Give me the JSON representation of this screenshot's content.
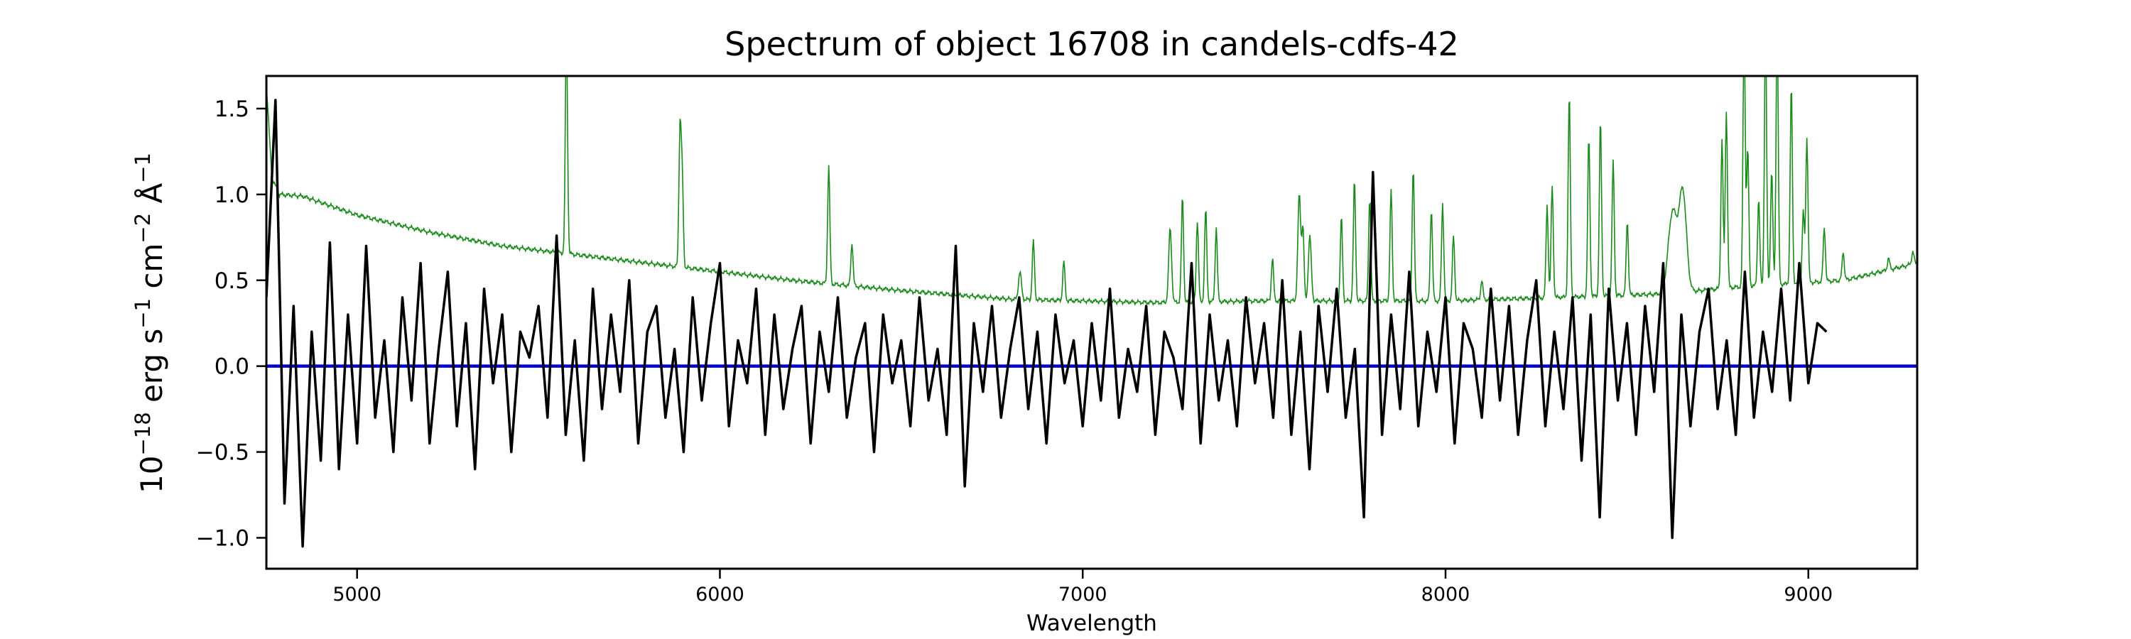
{
  "chart_data": {
    "type": "line",
    "title": "Spectrum of object 16708 in candels-cdfs-42",
    "xlabel": "Wavelength",
    "ylabel": {
      "base": "10",
      "exp1": "−18",
      "t1": " erg s",
      "exp2": "−1",
      "t2": " cm",
      "exp3": "−2",
      "t3": " Å",
      "exp4": "−1"
    },
    "xlim": [
      4750,
      9300
    ],
    "ylim": [
      -1.18,
      1.69
    ],
    "xticks": [
      5000,
      6000,
      7000,
      8000,
      9000
    ],
    "xtick_labels": [
      "5000",
      "6000",
      "7000",
      "8000",
      "9000"
    ],
    "yticks": [
      -1.0,
      -0.5,
      0.0,
      0.5,
      1.0,
      1.5
    ],
    "ytick_labels": [
      "−1.0",
      "−0.5",
      "0.0",
      "0.5",
      "1.0",
      "1.5"
    ],
    "grid": false,
    "colors": {
      "flux": "#000000",
      "zero": "#0000cc",
      "model": "#1a8a1a"
    },
    "series": [
      {
        "name": "flux",
        "x_start": 4750,
        "x_step": 25,
        "values": [
          0.4,
          1.55,
          -0.8,
          0.35,
          -1.05,
          0.2,
          -0.55,
          0.72,
          -0.6,
          0.3,
          -0.45,
          0.7,
          -0.3,
          0.15,
          -0.5,
          0.4,
          -0.2,
          0.6,
          -0.45,
          0.1,
          0.55,
          -0.35,
          0.25,
          -0.6,
          0.45,
          -0.1,
          0.3,
          -0.5,
          0.2,
          0.05,
          0.35,
          -0.3,
          0.76,
          -0.4,
          0.15,
          -0.55,
          0.45,
          -0.25,
          0.3,
          -0.15,
          0.5,
          -0.45,
          0.2,
          0.35,
          -0.3,
          0.1,
          -0.5,
          0.4,
          -0.2,
          0.25,
          0.6,
          -0.35,
          0.15,
          -0.1,
          0.45,
          -0.4,
          0.3,
          -0.25,
          0.1,
          0.35,
          -0.45,
          0.2,
          -0.15,
          0.4,
          -0.3,
          0.05,
          0.25,
          -0.5,
          0.3,
          -0.1,
          0.15,
          -0.35,
          0.4,
          -0.2,
          0.1,
          -0.4,
          0.7,
          -0.7,
          0.25,
          -0.15,
          0.35,
          -0.3,
          0.1,
          0.4,
          -0.25,
          0.2,
          -0.45,
          0.3,
          -0.1,
          0.15,
          -0.35,
          0.25,
          -0.2,
          0.45,
          -0.3,
          0.1,
          -0.15,
          0.35,
          -0.4,
          0.2,
          0.05,
          -0.25,
          0.6,
          -0.45,
          0.3,
          -0.2,
          0.15,
          -0.35,
          0.4,
          -0.1,
          0.25,
          -0.3,
          0.5,
          -0.4,
          0.2,
          -0.6,
          0.35,
          -0.15,
          0.45,
          -0.3,
          0.1,
          -0.88,
          1.13,
          -0.4,
          0.3,
          -0.25,
          0.55,
          -0.35,
          0.2,
          -0.15,
          0.4,
          -0.45,
          0.25,
          0.1,
          -0.3,
          0.45,
          -0.2,
          0.35,
          -0.4,
          0.15,
          0.5,
          -0.35,
          0.2,
          -0.25,
          0.4,
          -0.55,
          0.3,
          -0.88,
          0.45,
          -0.2,
          0.25,
          -0.4,
          0.35,
          -0.15,
          0.6,
          -1.0,
          0.3,
          -0.35,
          0.2,
          0.45,
          -0.25,
          0.15,
          -0.4,
          0.55,
          -0.3,
          0.2,
          -0.15,
          0.45,
          -0.2,
          0.6,
          -0.1,
          0.25,
          0.2
        ]
      },
      {
        "name": "zero",
        "values": [
          [
            4750,
            0.0
          ],
          [
            9300,
            0.0
          ]
        ]
      },
      {
        "name": "model",
        "baseline": [
          [
            4750,
            1.65
          ],
          [
            4765,
            1.1
          ],
          [
            4785,
            1.0
          ],
          [
            4850,
            0.99
          ],
          [
            5000,
            0.88
          ],
          [
            5200,
            0.78
          ],
          [
            5400,
            0.7
          ],
          [
            5600,
            0.65
          ],
          [
            5800,
            0.6
          ],
          [
            6000,
            0.55
          ],
          [
            6200,
            0.5
          ],
          [
            6500,
            0.44
          ],
          [
            6800,
            0.39
          ],
          [
            7000,
            0.38
          ],
          [
            7200,
            0.37
          ],
          [
            7500,
            0.38
          ],
          [
            8000,
            0.38
          ],
          [
            8300,
            0.4
          ],
          [
            8600,
            0.42
          ],
          [
            8800,
            0.46
          ],
          [
            9100,
            0.5
          ],
          [
            9300,
            0.6
          ]
        ],
        "peaks": [
          [
            5577,
            2.0,
            3
          ],
          [
            5890,
            1.37,
            3
          ],
          [
            5896,
            1.1,
            3
          ],
          [
            6300,
            1.17,
            3
          ],
          [
            6364,
            0.72,
            3
          ],
          [
            6827,
            0.55,
            4
          ],
          [
            6864,
            0.73,
            3
          ],
          [
            6948,
            0.61,
            3
          ],
          [
            7241,
            0.8,
            4
          ],
          [
            7275,
            0.99,
            3
          ],
          [
            7316,
            0.85,
            3
          ],
          [
            7339,
            0.92,
            3
          ],
          [
            7368,
            0.81,
            3
          ],
          [
            7523,
            0.63,
            3
          ],
          [
            7597,
            1.0,
            4
          ],
          [
            7607,
            0.8,
            3
          ],
          [
            7626,
            0.76,
            4
          ],
          [
            7713,
            0.87,
            3
          ],
          [
            7749,
            1.09,
            3
          ],
          [
            7791,
            0.98,
            3
          ],
          [
            7850,
            1.03,
            3
          ],
          [
            7911,
            1.16,
            3
          ],
          [
            7961,
            0.92,
            3
          ],
          [
            7992,
            0.95,
            3
          ],
          [
            8022,
            0.76,
            3
          ],
          [
            8100,
            0.5,
            3
          ],
          [
            8280,
            0.94,
            3
          ],
          [
            8294,
            1.05,
            3
          ],
          [
            8341,
            1.59,
            3
          ],
          [
            8395,
            1.34,
            3
          ],
          [
            8427,
            1.44,
            3
          ],
          [
            8462,
            1.2,
            3
          ],
          [
            8501,
            0.85,
            3
          ],
          [
            8626,
            0.9,
            12
          ],
          [
            8654,
            1.01,
            10
          ],
          [
            8762,
            1.33,
            3
          ],
          [
            8774,
            1.49,
            3
          ],
          [
            8823,
            2.0,
            3
          ],
          [
            8833,
            1.27,
            3
          ],
          [
            8863,
            0.98,
            3
          ],
          [
            8882,
            2.0,
            3
          ],
          [
            8899,
            1.14,
            3
          ],
          [
            8914,
            2.0,
            3
          ],
          [
            8953,
            1.64,
            3
          ],
          [
            8986,
            0.9,
            3
          ],
          [
            8996,
            1.34,
            3
          ],
          [
            9044,
            0.81,
            3
          ],
          [
            9096,
            0.67,
            3
          ],
          [
            9221,
            0.63,
            3
          ],
          [
            9288,
            0.67,
            3
          ]
        ]
      }
    ]
  }
}
